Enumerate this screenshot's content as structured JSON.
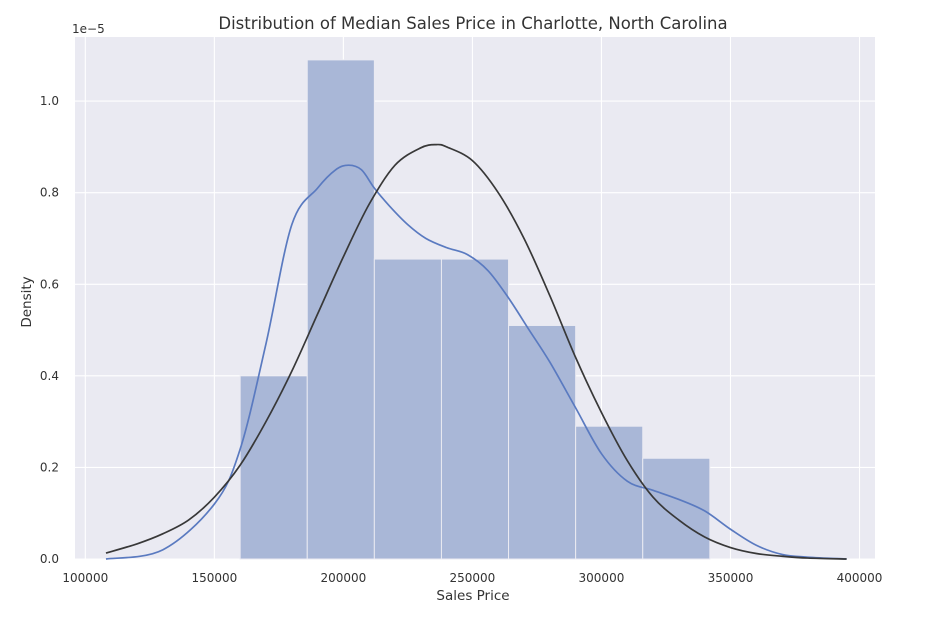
{
  "chart_data": {
    "type": "histogram",
    "title": "Distribution of Median Sales Price in Charlotte, North Carolina",
    "xlabel": "Sales Price",
    "ylabel": "Density",
    "y_scale_label": "1e−5",
    "xlim": [
      96000,
      406000
    ],
    "ylim": [
      0,
      1.14
    ],
    "grid": true,
    "x_ticks": [
      {
        "value": 100000,
        "label": "100000"
      },
      {
        "value": 150000,
        "label": "150000"
      },
      {
        "value": 200000,
        "label": "200000"
      },
      {
        "value": 250000,
        "label": "250000"
      },
      {
        "value": 300000,
        "label": "300000"
      },
      {
        "value": 350000,
        "label": "350000"
      },
      {
        "value": 400000,
        "label": "400000"
      }
    ],
    "y_ticks": [
      {
        "value": 0.0,
        "label": "0.0"
      },
      {
        "value": 0.2,
        "label": "0.2"
      },
      {
        "value": 0.4,
        "label": "0.4"
      },
      {
        "value": 0.6,
        "label": "0.6"
      },
      {
        "value": 0.8,
        "label": "0.8"
      },
      {
        "value": 1.0,
        "label": "1.0"
      }
    ],
    "bins": [
      {
        "x0": 160000,
        "x1": 186000,
        "density": 0.4
      },
      {
        "x0": 186000,
        "x1": 212000,
        "density": 1.09
      },
      {
        "x0": 212000,
        "x1": 238000,
        "density": 0.655
      },
      {
        "x0": 238000,
        "x1": 264000,
        "density": 0.655
      },
      {
        "x0": 264000,
        "x1": 290000,
        "density": 0.51
      },
      {
        "x0": 290000,
        "x1": 316000,
        "density": 0.29
      },
      {
        "x0": 316000,
        "x1": 342000,
        "density": 0.22
      }
    ],
    "series": [
      {
        "kind": "kde",
        "x": [
          108000,
          130000,
          150000,
          160000,
          170000,
          180000,
          190000,
          197000,
          202000,
          207000,
          212000,
          218000,
          225000,
          232000,
          240000,
          248000,
          256000,
          264000,
          272000,
          280000,
          290000,
          300000,
          310000,
          320000,
          330000,
          340000,
          350000,
          360000,
          370000,
          380000,
          395000
        ],
        "y": [
          0.0,
          0.02,
          0.12,
          0.24,
          0.47,
          0.73,
          0.81,
          0.85,
          0.86,
          0.85,
          0.81,
          0.77,
          0.73,
          0.7,
          0.68,
          0.665,
          0.63,
          0.57,
          0.5,
          0.43,
          0.33,
          0.23,
          0.17,
          0.15,
          0.13,
          0.105,
          0.065,
          0.03,
          0.01,
          0.004,
          0.0
        ]
      },
      {
        "kind": "normal-fit",
        "x": [
          108000,
          120000,
          130000,
          140000,
          150000,
          160000,
          170000,
          180000,
          190000,
          200000,
          210000,
          220000,
          230000,
          236000,
          240000,
          250000,
          260000,
          270000,
          280000,
          290000,
          300000,
          310000,
          320000,
          330000,
          340000,
          350000,
          360000,
          370000,
          380000,
          395000
        ],
        "y": [
          0.013,
          0.033,
          0.055,
          0.085,
          0.135,
          0.205,
          0.3,
          0.41,
          0.535,
          0.66,
          0.775,
          0.86,
          0.898,
          0.905,
          0.9,
          0.87,
          0.8,
          0.7,
          0.575,
          0.44,
          0.32,
          0.215,
          0.135,
          0.085,
          0.048,
          0.025,
          0.012,
          0.006,
          0.002,
          0.0
        ]
      }
    ],
    "colors": {
      "bars": "#a9b7d7",
      "bar_edge": "#eaeaf2",
      "kde": "#5a7ac0",
      "fit": "#383838",
      "plot_bg": "#eaeaf2",
      "grid": "#ffffff"
    }
  }
}
